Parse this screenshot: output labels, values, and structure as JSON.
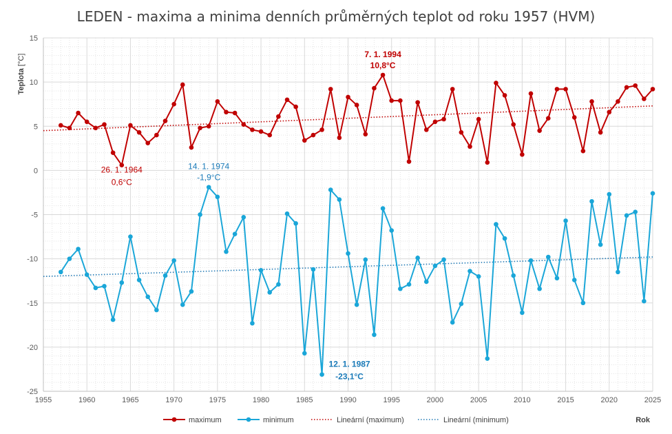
{
  "chart_data": {
    "type": "line",
    "title": "LEDEN - maxima a minima denních průměrných teplot od roku 1957 (HVM)",
    "ylabel_main": "Teplota",
    "ylabel_unit": "[°C]",
    "xlabel": "Rok",
    "xlim": [
      1955,
      2025
    ],
    "ylim": [
      -25,
      15
    ],
    "x_ticks": [
      1955,
      1960,
      1965,
      1970,
      1975,
      1980,
      1985,
      1990,
      1995,
      2000,
      2005,
      2010,
      2015,
      2020,
      2025
    ],
    "y_ticks": [
      15,
      10,
      5,
      0,
      -5,
      -10,
      -15,
      -20,
      -25
    ],
    "grid": true,
    "x": [
      1957,
      1958,
      1959,
      1960,
      1961,
      1962,
      1963,
      1964,
      1965,
      1966,
      1967,
      1968,
      1969,
      1970,
      1971,
      1972,
      1973,
      1974,
      1975,
      1976,
      1977,
      1978,
      1979,
      1980,
      1981,
      1982,
      1983,
      1984,
      1985,
      1986,
      1987,
      1988,
      1989,
      1990,
      1991,
      1992,
      1993,
      1994,
      1995,
      1996,
      1997,
      1998,
      1999,
      2000,
      2001,
      2002,
      2003,
      2004,
      2005,
      2006,
      2007,
      2008,
      2009,
      2010,
      2011,
      2012,
      2013,
      2014,
      2015,
      2016,
      2017,
      2018,
      2019,
      2020,
      2021,
      2022,
      2023,
      2024,
      2025
    ],
    "series": [
      {
        "name": "maximum",
        "color": "#c00000",
        "values": [
          5.1,
          4.8,
          6.5,
          5.5,
          4.8,
          5.2,
          2.0,
          0.6,
          5.1,
          4.3,
          3.1,
          4.0,
          5.6,
          7.5,
          9.7,
          2.6,
          4.8,
          5.0,
          7.8,
          6.6,
          6.5,
          5.2,
          4.6,
          4.4,
          4.0,
          6.1,
          8.0,
          7.2,
          3.4,
          4.0,
          4.6,
          9.2,
          3.7,
          8.3,
          7.4,
          4.1,
          9.3,
          10.8,
          7.9,
          7.9,
          1.0,
          7.7,
          4.6,
          5.5,
          5.8,
          9.2,
          4.3,
          2.7,
          5.8,
          0.9,
          9.9,
          8.5,
          5.2,
          1.8,
          8.7,
          4.5,
          5.9,
          9.2,
          9.2,
          6.0,
          2.2,
          7.8,
          4.3,
          6.6,
          7.8,
          9.4,
          9.6,
          8.1,
          9.2
        ]
      },
      {
        "name": "minimum",
        "color": "#1aa6d8",
        "values": [
          -11.5,
          -10.0,
          -8.9,
          -11.8,
          -13.3,
          -13.1,
          -16.9,
          -12.7,
          -7.5,
          -12.4,
          -14.3,
          -15.8,
          -11.9,
          -10.2,
          -15.2,
          -13.7,
          -5.0,
          -1.9,
          -3.0,
          -9.2,
          -7.2,
          -5.3,
          -17.3,
          -11.3,
          -13.8,
          -12.9,
          -4.9,
          -6.0,
          -20.7,
          -11.2,
          -23.1,
          -2.2,
          -3.3,
          -9.4,
          -15.2,
          -10.1,
          -18.6,
          -4.3,
          -6.8,
          -13.4,
          -12.9,
          -9.9,
          -12.6,
          -10.8,
          -10.1,
          -17.2,
          -15.1,
          -11.4,
          -12.0,
          -21.3,
          -6.1,
          -7.7,
          -11.9,
          -16.1,
          -10.2,
          -13.4,
          -9.8,
          -12.2,
          -5.7,
          -12.4,
          -15.0,
          -3.5,
          -8.4,
          -2.7,
          -11.5,
          -5.1,
          -4.7,
          -14.8,
          -2.6
        ]
      }
    ],
    "trendlines": [
      {
        "name": "Lineární (maximum)",
        "color": "#c00000",
        "x": [
          1955,
          2025
        ],
        "y": [
          4.5,
          7.3
        ]
      },
      {
        "name": "Lineární (minimum)",
        "color": "#1f78b4",
        "x": [
          1955,
          2025
        ],
        "y": [
          -12.0,
          -9.8
        ]
      }
    ],
    "legend_position": "bottom",
    "annotations": [
      {
        "line1": "7. 1. 1994",
        "line2": "10,8°C",
        "color": "#c00000",
        "bold": true,
        "anchor_x": 1994,
        "anchor_y": 10.8,
        "placement": "above"
      },
      {
        "line1": "26. 1. 1964",
        "line2": "0,6°C",
        "color": "#c00000",
        "bold": false,
        "anchor_x": 1964,
        "anchor_y": 0.6,
        "placement": "below"
      },
      {
        "line1": "14. 1. 1974",
        "line2": "-1,9°C",
        "color": "#1a7ab8",
        "bold": false,
        "anchor_x": 1974,
        "anchor_y": -1.9,
        "placement": "above"
      },
      {
        "line1": "12. 1. 1987",
        "line2": "-23,1°C",
        "color": "#1a7ab8",
        "bold": true,
        "anchor_x": 1987,
        "anchor_y": -23.1,
        "placement": "right-above"
      }
    ]
  }
}
